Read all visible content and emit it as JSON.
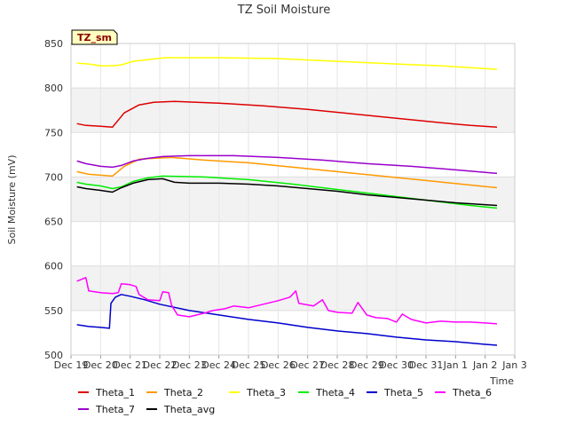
{
  "chart_data": {
    "type": "line",
    "title": "TZ Soil Moisture",
    "xlabel": "Time",
    "ylabel": "Soil Moisture (mV)",
    "badge": "TZ_sm",
    "ylim": [
      500,
      850
    ],
    "xlim": [
      0,
      15
    ],
    "yticks": [
      500,
      550,
      600,
      650,
      700,
      750,
      800,
      850
    ],
    "xticks": [
      {
        "v": 0,
        "label": "Dec 19"
      },
      {
        "v": 1,
        "label": "Dec 20"
      },
      {
        "v": 2,
        "label": "Dec 21"
      },
      {
        "v": 3,
        "label": "Dec 22"
      },
      {
        "v": 4,
        "label": "Dec 23"
      },
      {
        "v": 5,
        "label": "Dec 24"
      },
      {
        "v": 6,
        "label": "Dec 25"
      },
      {
        "v": 7,
        "label": "Dec 26"
      },
      {
        "v": 8,
        "label": "Dec 27"
      },
      {
        "v": 9,
        "label": "Dec 28"
      },
      {
        "v": 10,
        "label": "Dec 29"
      },
      {
        "v": 11,
        "label": "Dec 30"
      },
      {
        "v": 12,
        "label": "Dec 31"
      },
      {
        "v": 13,
        "label": "Jan 1"
      },
      {
        "v": 14,
        "label": "Jan 2"
      },
      {
        "v": 15,
        "label": "Jan 3"
      }
    ],
    "series": [
      {
        "name": "Theta_1",
        "color": "#dd0000",
        "x": [
          0.2,
          0.5,
          1.0,
          1.4,
          1.8,
          2.3,
          2.8,
          3.5,
          5,
          6.5,
          8,
          9.5,
          11,
          12.5,
          13.5,
          14.4
        ],
        "y": [
          760,
          758,
          757,
          756,
          772,
          781,
          784,
          785,
          783,
          780,
          776,
          771,
          766,
          761,
          758,
          756
        ]
      },
      {
        "name": "Theta_2",
        "color": "#ff9900",
        "x": [
          0.2,
          0.6,
          1.0,
          1.4,
          1.8,
          2.3,
          2.8,
          3.4,
          4.5,
          6,
          7.5,
          9,
          10.5,
          12,
          13.5,
          14.4
        ],
        "y": [
          706,
          703,
          702,
          701,
          712,
          720,
          721,
          722,
          719,
          716,
          711,
          706,
          701,
          696,
          691,
          688
        ]
      },
      {
        "name": "Theta_3",
        "color": "#ffff00",
        "x": [
          0.2,
          0.6,
          1.0,
          1.4,
          1.7,
          2.1,
          2.6,
          3.2,
          5,
          7,
          9,
          11,
          12.5,
          14.4
        ],
        "y": [
          828,
          827,
          825,
          825,
          826,
          830,
          832,
          834,
          834,
          833,
          830,
          827,
          825,
          821
        ]
      },
      {
        "name": "Theta_4",
        "color": "#00ee00",
        "x": [
          0.2,
          0.5,
          1.0,
          1.4,
          1.7,
          2.1,
          2.6,
          3.1,
          4.5,
          6,
          7.5,
          9,
          10.5,
          12,
          13.5,
          14.4
        ],
        "y": [
          694,
          692,
          690,
          687,
          689,
          695,
          699,
          701,
          700,
          697,
          692,
          686,
          680,
          674,
          668,
          665
        ]
      },
      {
        "name": "Theta_5",
        "color": "#0000cc",
        "x": [
          0.2,
          0.6,
          1.0,
          1.3,
          1.35,
          1.5,
          1.7,
          2.0,
          2.5,
          3.0,
          4,
          5,
          6,
          7,
          8,
          9,
          10,
          11,
          12,
          13,
          14,
          14.4
        ],
        "y": [
          534,
          532,
          531,
          530,
          558,
          565,
          568,
          566,
          562,
          557,
          550,
          545,
          540,
          536,
          531,
          527,
          524,
          520,
          517,
          515,
          512,
          511
        ]
      },
      {
        "name": "Theta_6",
        "color": "#ff00ff",
        "x": [
          0.2,
          0.5,
          0.6,
          1.0,
          1.4,
          1.6,
          1.7,
          2.0,
          2.2,
          2.3,
          2.6,
          3.0,
          3.1,
          3.3,
          3.4,
          3.6,
          4.0,
          4.5,
          4.8,
          5.2,
          5.5,
          6,
          6.5,
          7,
          7.4,
          7.6,
          7.7,
          8.2,
          8.5,
          8.7,
          9.0,
          9.5,
          9.7,
          10.0,
          10.3,
          10.7,
          11.0,
          11.2,
          11.5,
          12,
          12.5,
          13,
          13.5,
          14,
          14.4
        ],
        "y": [
          583,
          587,
          572,
          570,
          569,
          570,
          580,
          579,
          577,
          568,
          562,
          561,
          571,
          570,
          556,
          545,
          543,
          547,
          550,
          552,
          555,
          553,
          557,
          561,
          565,
          572,
          558,
          555,
          562,
          550,
          548,
          547,
          559,
          545,
          542,
          541,
          537,
          546,
          540,
          536,
          538,
          537,
          537,
          536,
          535
        ]
      },
      {
        "name": "Theta_7",
        "color": "#9900cc",
        "x": [
          0.2,
          0.5,
          1.0,
          1.4,
          1.7,
          2.1,
          2.6,
          3.1,
          4,
          5.5,
          7,
          8.5,
          10,
          11.5,
          13,
          14.4
        ],
        "y": [
          718,
          715,
          712,
          711,
          713,
          718,
          721,
          723,
          724,
          724,
          722,
          719,
          715,
          712,
          708,
          704
        ]
      },
      {
        "name": "Theta_avg",
        "color": "#000000",
        "x": [
          0.2,
          0.5,
          1.0,
          1.4,
          1.7,
          2.1,
          2.6,
          3.1,
          3.5,
          4,
          5,
          6,
          7,
          8,
          9,
          10,
          11,
          12,
          13,
          14.4
        ],
        "y": [
          689,
          687,
          685,
          683,
          688,
          693,
          697,
          698,
          694,
          693,
          693,
          692,
          690,
          687,
          684,
          680,
          677,
          674,
          671,
          668
        ]
      }
    ]
  }
}
